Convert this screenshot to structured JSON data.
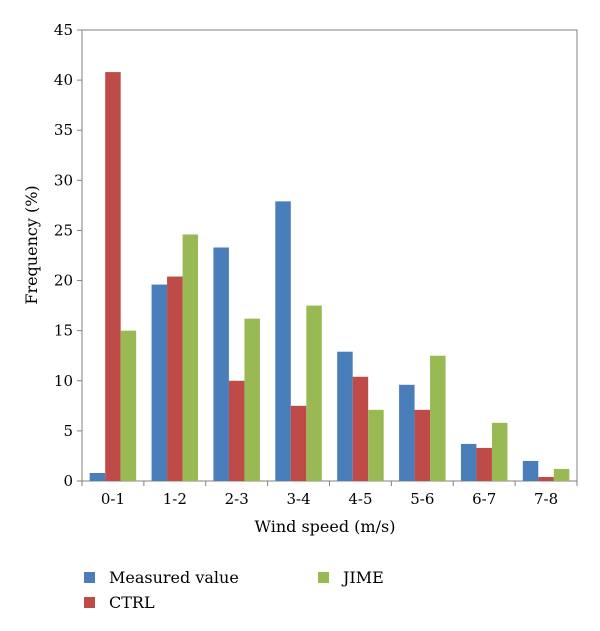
{
  "chart_data": {
    "type": "bar",
    "title": "",
    "xlabel": "Wind speed (m/s)",
    "ylabel": "Frequency (%)",
    "ylim": [
      0,
      45
    ],
    "yticks": [
      "0",
      "5",
      "10",
      "15",
      "20",
      "25",
      "30",
      "35",
      "40",
      "45"
    ],
    "grid": false,
    "legend_position": "bottom",
    "categories": [
      "0-1",
      "1-2",
      "2-3",
      "3-4",
      "4-5",
      "5-6",
      "6-7",
      "7-8"
    ],
    "series": [
      {
        "name": "Measured value",
        "color": "#4a7ebb",
        "values": [
          0.8,
          19.6,
          23.3,
          27.9,
          12.9,
          9.6,
          3.7,
          2.0
        ]
      },
      {
        "name": "CTRL",
        "color": "#be4b48",
        "values": [
          40.8,
          20.4,
          10.0,
          7.5,
          10.4,
          7.1,
          3.3,
          0.4
        ]
      },
      {
        "name": "JIME",
        "color": "#98b954",
        "values": [
          15.0,
          24.6,
          16.2,
          17.5,
          7.1,
          12.5,
          5.8,
          1.2
        ]
      }
    ]
  }
}
